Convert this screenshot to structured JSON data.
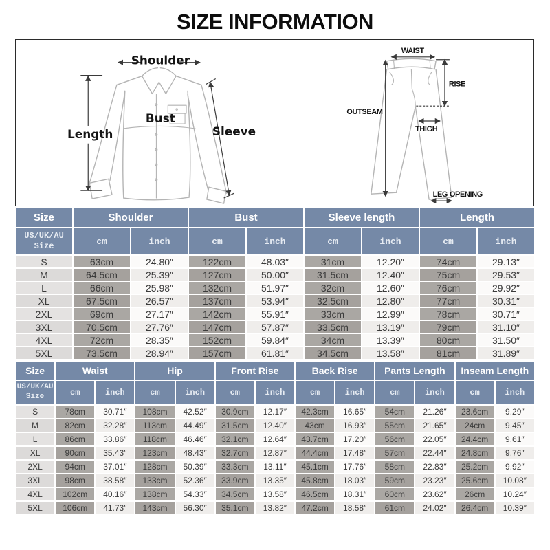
{
  "title": "SIZE INFORMATION",
  "colors": {
    "header_bg": "#7589a7",
    "unit_text": "#e6ebf2",
    "cell_text": "#3b3b3b",
    "size_bg": "#e4e2e1",
    "size_bg_alt": "#dcdad9",
    "cm_bg": "#aaa7a3",
    "cm_bg_alt": "#a5a19d",
    "inch_bg": "#fbfaf9",
    "inch_bg_alt": "#efedeb",
    "garment_line": "#b4b4b4",
    "arrow_line": "#3a3a3a"
  },
  "diagram": {
    "shirt": {
      "shoulder": "Shoulder",
      "length": "Length",
      "bust": "Bust",
      "sleeve": "Sleeve"
    },
    "pants": {
      "waist": "WAIST",
      "rise": "RISE",
      "outseam": "OUTSEAM",
      "thigh": "THIGH",
      "leg_opening": "LEG OPENING"
    }
  },
  "tables": {
    "tops": {
      "columns": [
        "Size",
        "Shoulder",
        "Bust",
        "Sleeve length",
        "Length"
      ],
      "size_header": "US/UK/AU\nSize",
      "unit_cm": "cm",
      "unit_inch": "inch",
      "rows": [
        {
          "size": "S",
          "values": [
            "63cm",
            "24.80″",
            "122cm",
            "48.03″",
            "31cm",
            "12.20″",
            "74cm",
            "29.13″"
          ]
        },
        {
          "size": "M",
          "values": [
            "64.5cm",
            "25.39″",
            "127cm",
            "50.00″",
            "31.5cm",
            "12.40″",
            "75cm",
            "29.53″"
          ]
        },
        {
          "size": "L",
          "values": [
            "66cm",
            "25.98″",
            "132cm",
            "51.97″",
            "32cm",
            "12.60″",
            "76cm",
            "29.92″"
          ]
        },
        {
          "size": "XL",
          "values": [
            "67.5cm",
            "26.57″",
            "137cm",
            "53.94″",
            "32.5cm",
            "12.80″",
            "77cm",
            "30.31″"
          ]
        },
        {
          "size": "2XL",
          "values": [
            "69cm",
            "27.17″",
            "142cm",
            "55.91″",
            "33cm",
            "12.99″",
            "78cm",
            "30.71″"
          ]
        },
        {
          "size": "3XL",
          "values": [
            "70.5cm",
            "27.76″",
            "147cm",
            "57.87″",
            "33.5cm",
            "13.19″",
            "79cm",
            "31.10″"
          ]
        },
        {
          "size": "4XL",
          "values": [
            "72cm",
            "28.35″",
            "152cm",
            "59.84″",
            "34cm",
            "13.39″",
            "80cm",
            "31.50″"
          ]
        },
        {
          "size": "5XL",
          "values": [
            "73.5cm",
            "28.94″",
            "157cm",
            "61.81″",
            "34.5cm",
            "13.58″",
            "81cm",
            "31.89″"
          ]
        }
      ]
    },
    "bottoms": {
      "columns": [
        "Size",
        "Waist",
        "Hip",
        "Front Rise",
        "Back Rise",
        "Pants Length",
        "Inseam Length"
      ],
      "size_header": "US/UK/AU\nSize",
      "unit_cm": "cm",
      "unit_inch": "inch",
      "rows": [
        {
          "size": "S",
          "values": [
            "78cm",
            "30.71″",
            "108cm",
            "42.52″",
            "30.9cm",
            "12.17″",
            "42.3cm",
            "16.65″",
            "54cm",
            "21.26″",
            "23.6cm",
            "9.29″"
          ]
        },
        {
          "size": "M",
          "values": [
            "82cm",
            "32.28″",
            "113cm",
            "44.49″",
            "31.5cm",
            "12.40″",
            "43cm",
            "16.93″",
            "55cm",
            "21.65″",
            "24cm",
            "9.45″"
          ]
        },
        {
          "size": "L",
          "values": [
            "86cm",
            "33.86″",
            "118cm",
            "46.46″",
            "32.1cm",
            "12.64″",
            "43.7cm",
            "17.20″",
            "56cm",
            "22.05″",
            "24.4cm",
            "9.61″"
          ]
        },
        {
          "size": "XL",
          "values": [
            "90cm",
            "35.43″",
            "123cm",
            "48.43″",
            "32.7cm",
            "12.87″",
            "44.4cm",
            "17.48″",
            "57cm",
            "22.44″",
            "24.8cm",
            "9.76″"
          ]
        },
        {
          "size": "2XL",
          "values": [
            "94cm",
            "37.01″",
            "128cm",
            "50.39″",
            "33.3cm",
            "13.11″",
            "45.1cm",
            "17.76″",
            "58cm",
            "22.83″",
            "25.2cm",
            "9.92″"
          ]
        },
        {
          "size": "3XL",
          "values": [
            "98cm",
            "38.58″",
            "133cm",
            "52.36″",
            "33.9cm",
            "13.35″",
            "45.8cm",
            "18.03″",
            "59cm",
            "23.23″",
            "25.6cm",
            "10.08″"
          ]
        },
        {
          "size": "4XL",
          "values": [
            "102cm",
            "40.16″",
            "138cm",
            "54.33″",
            "34.5cm",
            "13.58″",
            "46.5cm",
            "18.31″",
            "60cm",
            "23.62″",
            "26cm",
            "10.24″"
          ]
        },
        {
          "size": "5XL",
          "values": [
            "106cm",
            "41.73″",
            "143cm",
            "56.30″",
            "35.1cm",
            "13.82″",
            "47.2cm",
            "18.58″",
            "61cm",
            "24.02″",
            "26.4cm",
            "10.39″"
          ]
        }
      ]
    }
  }
}
